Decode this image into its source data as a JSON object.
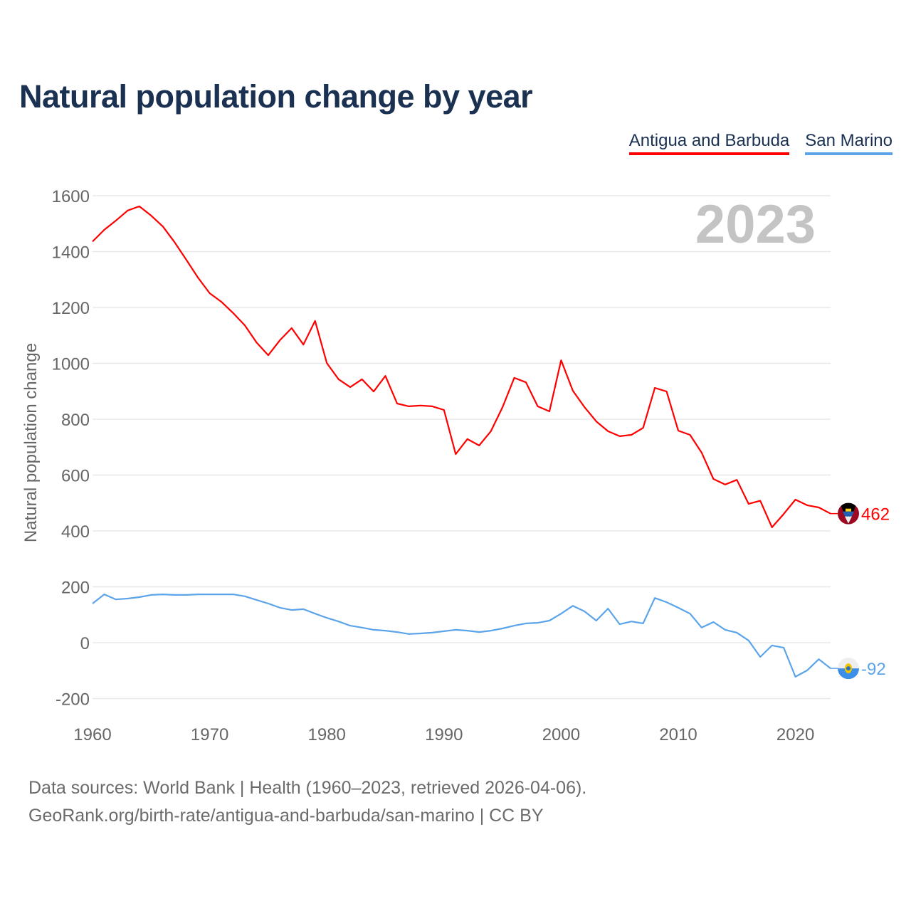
{
  "title": "Natural population change by year",
  "sources": {
    "line1": "Data sources: World Bank | Health (1960–2023, retrieved 2026-04-06).",
    "line2": "GeoRank.org/birth-rate/antigua-and-barbuda/san-marino | CC BY"
  },
  "chart_data": {
    "type": "line",
    "title": "Natural population change by year",
    "xlabel": "",
    "ylabel": "Natural population change",
    "year_label": "2023",
    "xlim": [
      1960,
      2023
    ],
    "ylim": [
      -200,
      1600
    ],
    "x_ticks": [
      "1960",
      "1970",
      "1980",
      "1990",
      "2000",
      "2010",
      "2020"
    ],
    "y_ticks": [
      "-200",
      "0",
      "200",
      "400",
      "600",
      "800",
      "1000",
      "1200",
      "1400",
      "1600"
    ],
    "grid": true,
    "legend_position": "top-right",
    "x_start": 1960,
    "series": [
      {
        "name": "Antigua and Barbuda",
        "color": "#ff0000",
        "flag": "antigua-flag",
        "end_label": "462",
        "values": [
          1436,
          1478,
          1511,
          1547,
          1562,
          1529,
          1490,
          1434,
          1371,
          1307,
          1251,
          1220,
          1180,
          1136,
          1075,
          1029,
          1083,
          1126,
          1067,
          1152,
          1001,
          943,
          915,
          943,
          899,
          955,
          856,
          846,
          849,
          846,
          833,
          675,
          729,
          706,
          757,
          843,
          948,
          932,
          846,
          828,
          1011,
          902,
          843,
          792,
          757,
          739,
          744,
          769,
          912,
          899,
          759,
          744,
          680,
          586,
          566,
          583,
          497,
          508,
          413,
          461,
          512,
          492,
          484,
          462
        ]
      },
      {
        "name": "San Marino",
        "color": "#5ba4ea",
        "flag": "san-marino-flag",
        "end_label": "-92",
        "values": [
          140,
          173,
          155,
          158,
          163,
          171,
          173,
          171,
          171,
          173,
          173,
          173,
          173,
          166,
          153,
          140,
          125,
          117,
          120,
          104,
          89,
          76,
          61,
          54,
          46,
          43,
          38,
          31,
          33,
          36,
          41,
          46,
          43,
          38,
          43,
          51,
          61,
          69,
          71,
          79,
          104,
          132,
          112,
          79,
          122,
          66,
          76,
          69,
          160,
          145,
          125,
          104,
          54,
          74,
          46,
          36,
          8,
          -51,
          -10,
          -18,
          -122,
          -99,
          -59,
          -92
        ]
      }
    ]
  }
}
